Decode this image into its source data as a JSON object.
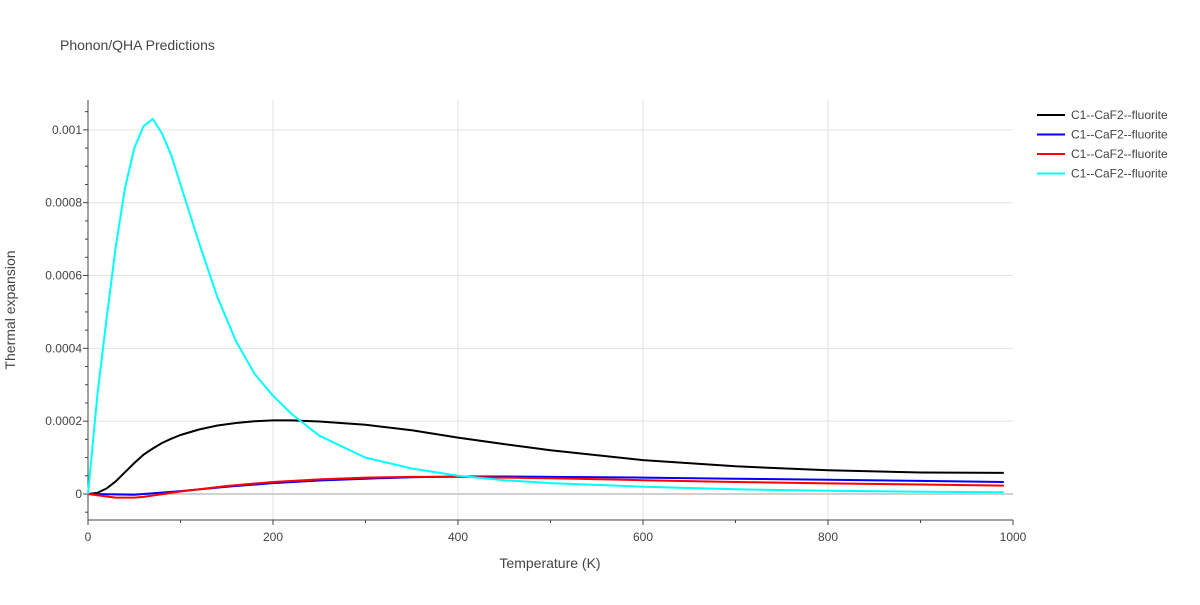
{
  "chart_data": {
    "type": "line",
    "title": "Phonon/QHA Predictions",
    "xlabel": "Temperature (K)",
    "ylabel": "Thermal expansion",
    "xlim": [
      0,
      1000
    ],
    "ylim": [
      -7.14e-05,
      0.001082
    ],
    "xticks": [
      0,
      200,
      400,
      600,
      800,
      1000
    ],
    "xtick_labels": [
      "0",
      "200",
      "400",
      "600",
      "800",
      "1000"
    ],
    "yticks": [
      0,
      0.0002,
      0.0004,
      0.0006,
      0.0008,
      0.001
    ],
    "ytick_labels": [
      "0",
      "0.0002",
      "0.0004",
      "0.0006",
      "0.0008",
      "0.001"
    ],
    "grid": true,
    "legend_position": "top-right",
    "series": [
      {
        "name": "C1--CaF2--fluorite",
        "color": "#000000",
        "x": [
          0,
          10,
          20,
          30,
          40,
          50,
          60,
          70,
          80,
          90,
          100,
          120,
          140,
          160,
          180,
          200,
          220,
          250,
          300,
          350,
          400,
          450,
          500,
          600,
          700,
          800,
          900,
          990
        ],
        "y": [
          0,
          3e-06,
          1.5e-05,
          3.5e-05,
          6e-05,
          8.5e-05,
          0.000108,
          0.000125,
          0.00014,
          0.000152,
          0.000162,
          0.000177,
          0.000188,
          0.000195,
          0.0002,
          0.000202,
          0.000202,
          0.000199,
          0.00019,
          0.000175,
          0.000155,
          0.000137,
          0.00012,
          9.3e-05,
          7.6e-05,
          6.5e-05,
          5.9e-05,
          5.8e-05
        ]
      },
      {
        "name": "C1--CaF2--fluorite",
        "color": "#0000ff",
        "x": [
          0,
          50,
          100,
          150,
          200,
          250,
          300,
          350,
          400,
          450,
          500,
          600,
          700,
          800,
          900,
          990
        ],
        "y": [
          0,
          -2e-06,
          8e-06,
          2e-05,
          3e-05,
          3.7e-05,
          4.2e-05,
          4.6e-05,
          4.8e-05,
          4.8e-05,
          4.7e-05,
          4.5e-05,
          4.2e-05,
          3.9e-05,
          3.6e-05,
          3.3e-05
        ]
      },
      {
        "name": "C1--CaF2--fluorite",
        "color": "#ff0000",
        "x": [
          0,
          20,
          30,
          50,
          60,
          100,
          150,
          200,
          250,
          300,
          350,
          400,
          450,
          500,
          600,
          700,
          800,
          900,
          990
        ],
        "y": [
          0,
          -7e-06,
          -1e-05,
          -1e-05,
          -8e-06,
          7e-06,
          2.2e-05,
          3.3e-05,
          4e-05,
          4.5e-05,
          4.7e-05,
          4.7e-05,
          4.5e-05,
          4.3e-05,
          3.8e-05,
          3.3e-05,
          2.9e-05,
          2.6e-05,
          2.3e-05
        ]
      },
      {
        "name": "C1--CaF2--fluorite",
        "color": "#00ffff",
        "x": [
          0,
          10,
          20,
          30,
          40,
          50,
          60,
          70,
          80,
          90,
          100,
          120,
          140,
          160,
          180,
          200,
          220,
          250,
          300,
          350,
          400,
          450,
          500,
          600,
          700,
          800,
          900,
          990
        ],
        "y": [
          0,
          0.00027,
          0.00048,
          0.00068,
          0.00084,
          0.00095,
          0.00101,
          0.00103,
          0.00099,
          0.00093,
          0.00085,
          0.00069,
          0.00054,
          0.00042,
          0.00033,
          0.00027,
          0.00022,
          0.00016,
          0.0001,
          7e-05,
          5e-05,
          3.8e-05,
          3e-05,
          2e-05,
          1.3e-05,
          9e-06,
          6e-06,
          5e-06
        ]
      }
    ]
  }
}
